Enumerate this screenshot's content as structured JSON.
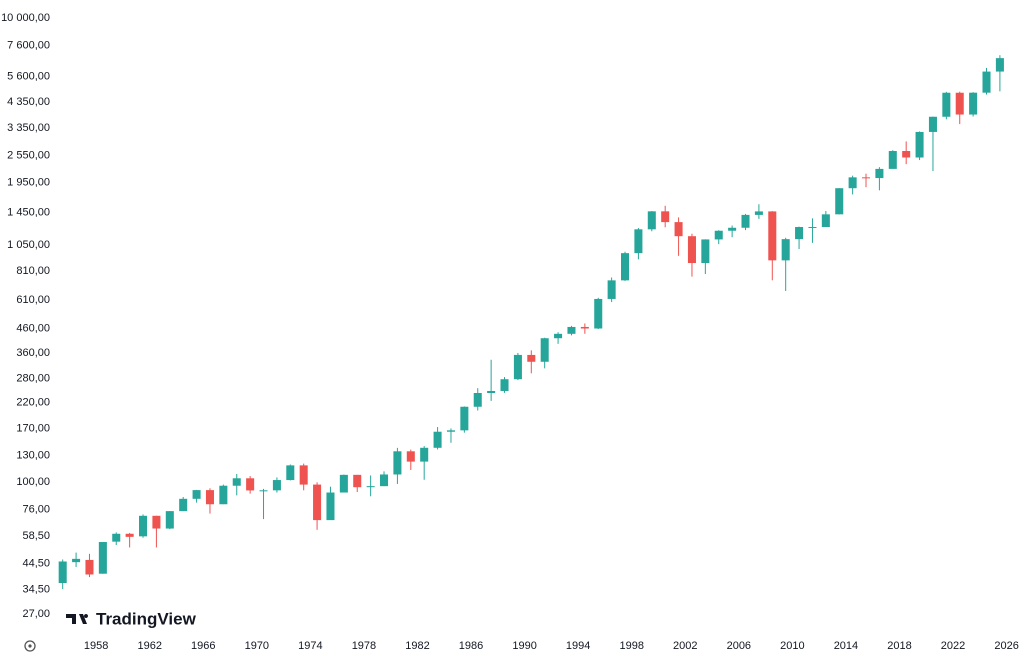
{
  "chart_data": {
    "type": "candlestick",
    "watermark": "TradingView",
    "log_scale": true,
    "up_color": "#26a69a",
    "down_color": "#ef5350",
    "x": [
      1955,
      1956,
      1957,
      1958,
      1959,
      1960,
      1961,
      1962,
      1963,
      1964,
      1965,
      1966,
      1967,
      1968,
      1969,
      1970,
      1971,
      1972,
      1973,
      1974,
      1975,
      1976,
      1977,
      1978,
      1979,
      1980,
      1981,
      1982,
      1983,
      1984,
      1985,
      1986,
      1987,
      1988,
      1989,
      1990,
      1991,
      1992,
      1993,
      1994,
      1995,
      1996,
      1997,
      1998,
      1999,
      2000,
      2001,
      2002,
      2003,
      2004,
      2005,
      2006,
      2007,
      2008,
      2009,
      2010,
      2011,
      2012,
      2013,
      2014,
      2015,
      2016,
      2017,
      2018,
      2019,
      2020,
      2021,
      2022,
      2023,
      2024,
      2025
    ],
    "open": [
      36.75,
      45.2,
      46.2,
      40.3,
      55.4,
      59.9,
      58.4,
      71.6,
      63.1,
      75.0,
      84.75,
      92.4,
      80.3,
      96.5,
      103.9,
      92.1,
      92.2,
      102.1,
      118.1,
      97.6,
      68.6,
      90.2,
      107.5,
      95.1,
      96.1,
      107.9,
      135.8,
      122.6,
      140.6,
      164.9,
      167.2,
      211.3,
      242.2,
      247.1,
      277.7,
      353.4,
      330.2,
      417.1,
      435.7,
      466.5,
      459.3,
      615.9,
      740.7,
      970.4,
      1229.2,
      1469.3,
      1320.3,
      1148.1,
      879.8,
      1111.9,
      1211.9,
      1248.3,
      1418.3,
      1468.4,
      903.3,
      1115.1,
      1257.6,
      1257.6,
      1426.2,
      1848.4,
      2058.9,
      2043.9,
      2238.8,
      2673.6,
      2506.9,
      3230.8,
      3756.1,
      4766.2,
      3839.5,
      4769.8,
      5881.6
    ],
    "high": [
      46.4,
      49.7,
      49.1,
      55.2,
      60.7,
      60.4,
      72.6,
      71.6,
      75.0,
      86.3,
      92.6,
      94.1,
      97.6,
      108.4,
      106.2,
      93.5,
      104.8,
      119.1,
      120.2,
      99.8,
      95.6,
      107.8,
      107.5,
      106.9,
      111.3,
      140.5,
      138.1,
      143.0,
      172.7,
      170.4,
      212.0,
      254.0,
      336.8,
      283.7,
      360.4,
      369.8,
      419.3,
      442.7,
      471.3,
      482.9,
      622.9,
      762.1,
      983.8,
      1244.9,
      1473.1,
      1552.9,
      1383.4,
      1176.9,
      1112.6,
      1217.9,
      1275.8,
      1431.8,
      1576.1,
      1471.8,
      1130.4,
      1262.6,
      1370.6,
      1474.5,
      1849.4,
      2093.6,
      2134.7,
      2277.5,
      2695.0,
      2940.9,
      3247.9,
      3760.2,
      4808.9,
      4818.6,
      4793.3,
      6100.0,
      6920.0
    ],
    "low": [
      34.6,
      43.1,
      38.98,
      40.3,
      53.6,
      52.3,
      57.6,
      52.3,
      62.7,
      75.0,
      81.6,
      73.2,
      80.4,
      87.7,
      89.2,
      69.3,
      90.2,
      101.7,
      92.2,
      62.3,
      70.0,
      90.9,
      90.7,
      86.9,
      96.1,
      98.2,
      112.8,
      102.4,
      138.3,
      147.8,
      163.4,
      203.5,
      223.9,
      242.6,
      275.3,
      294.5,
      309.4,
      394.5,
      429.0,
      435.9,
      457.2,
      597.3,
      737.0,
      912.8,
      1205.5,
      1254.1,
      944.8,
      768.6,
      788.9,
      1060.7,
      1136.2,
      1219.3,
      1363.0,
      741.0,
      666.8,
      1010.9,
      1074.8,
      1258.9,
      1426.2,
      1737.9,
      1867.0,
      1810.1,
      2245.1,
      2346.6,
      2444.0,
      2191.9,
      3662.7,
      3491.6,
      3764.5,
      4682.1,
      4835.0
    ],
    "close": [
      45.5,
      46.7,
      39.99,
      55.2,
      59.9,
      58.1,
      71.6,
      63.1,
      75.0,
      84.75,
      92.4,
      80.3,
      96.5,
      103.9,
      92.1,
      92.2,
      102.1,
      118.1,
      97.6,
      68.6,
      90.2,
      107.5,
      95.1,
      96.1,
      107.9,
      135.8,
      122.6,
      140.6,
      164.9,
      167.2,
      211.3,
      242.2,
      247.1,
      277.7,
      353.4,
      330.2,
      417.1,
      435.7,
      466.5,
      459.3,
      615.9,
      740.7,
      970.4,
      1229.2,
      1469.3,
      1320.3,
      1148.1,
      879.8,
      1111.9,
      1211.9,
      1248.3,
      1418.3,
      1468.4,
      903.3,
      1115.1,
      1257.6,
      1257.6,
      1426.2,
      1848.4,
      2058.9,
      2043.9,
      2238.8,
      2673.6,
      2506.9,
      3230.8,
      3756.1,
      4766.2,
      3839.5,
      4769.8,
      5881.6,
      6720.0
    ],
    "xlim": [
      1955,
      2027.3
    ],
    "xticks": [
      1958,
      1962,
      1966,
      1970,
      1974,
      1978,
      1982,
      1986,
      1990,
      1994,
      1998,
      2002,
      2006,
      2010,
      2014,
      2018,
      2022,
      2026
    ],
    "ylim": [
      22.6,
      11500
    ],
    "yticks": [
      {
        "value": 27,
        "label": "27,00"
      },
      {
        "value": 34.5,
        "label": "34,50"
      },
      {
        "value": 44.5,
        "label": "44,50"
      },
      {
        "value": 58.5,
        "label": "58,50"
      },
      {
        "value": 76,
        "label": "76,00"
      },
      {
        "value": 100,
        "label": "100,00"
      },
      {
        "value": 130,
        "label": "130,00"
      },
      {
        "value": 170,
        "label": "170,00"
      },
      {
        "value": 220,
        "label": "220,00"
      },
      {
        "value": 280,
        "label": "280,00"
      },
      {
        "value": 360,
        "label": "360,00"
      },
      {
        "value": 460,
        "label": "460,00"
      },
      {
        "value": 610,
        "label": "610,00"
      },
      {
        "value": 810,
        "label": "810,00"
      },
      {
        "value": 1050,
        "label": "1 050,00"
      },
      {
        "value": 1450,
        "label": "1 450,00"
      },
      {
        "value": 1950,
        "label": "1 950,00"
      },
      {
        "value": 2550,
        "label": "2 550,00"
      },
      {
        "value": 3350,
        "label": "3 350,00"
      },
      {
        "value": 4350,
        "label": "4 350,00"
      },
      {
        "value": 5600,
        "label": "5 600,00"
      },
      {
        "value": 7600,
        "label": "7 600,00"
      },
      {
        "value": 10000,
        "label": "10 000,00"
      }
    ]
  }
}
